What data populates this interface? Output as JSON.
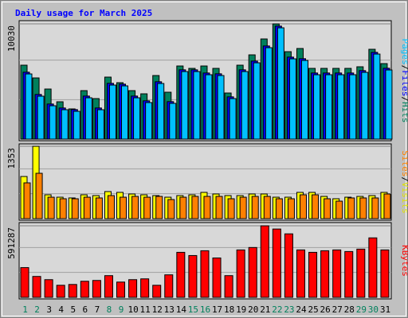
{
  "chart_data": {
    "type": "bar",
    "title": "Daily usage for March 2025",
    "separator": "/",
    "categories": [
      "1",
      "2",
      "3",
      "4",
      "5",
      "6",
      "7",
      "8",
      "9",
      "10",
      "11",
      "12",
      "13",
      "14",
      "15",
      "16",
      "17",
      "18",
      "19",
      "20",
      "21",
      "22",
      "23",
      "24",
      "25",
      "26",
      "27",
      "28",
      "29",
      "30",
      "31"
    ],
    "category_colors": [
      "#00805c",
      "#00805c",
      "#000000",
      "#000000",
      "#000000",
      "#000000",
      "#000000",
      "#00805c",
      "#00805c",
      "#000000",
      "#000000",
      "#000000",
      "#000000",
      "#000000",
      "#00805c",
      "#00805c",
      "#000000",
      "#000000",
      "#000000",
      "#000000",
      "#000000",
      "#00805c",
      "#00805c",
      "#000000",
      "#000000",
      "#000000",
      "#000000",
      "#000000",
      "#00805c",
      "#00805c",
      "#000000"
    ],
    "panels": [
      {
        "ylim": [
          0,
          10311
        ],
        "yticks": [
          10030
        ],
        "series": [
          {
            "name": "Hits",
            "color": "#00805c",
            "values": [
              6436,
              5328,
              4360,
              3252,
              2630,
              4221,
              3529,
              5398,
              4913,
              4221,
              3944,
              5536,
              4083,
              6366,
              6159,
              6366,
              6159,
              4014,
              6436,
              7335,
              8719,
              10030,
              7612,
              7889,
              6159,
              6159,
              6159,
              6159,
              6297,
              7820,
              6574
            ]
          },
          {
            "name": "Files",
            "color": "#0000ff",
            "values": [
              5824,
              3887,
              3056,
              2710,
              2572,
              3748,
              2710,
              4856,
              4786,
              3748,
              3333,
              4994,
              3264,
              6032,
              6032,
              5755,
              5686,
              3679,
              6032,
              6793,
              8108,
              9838,
              7139,
              7001,
              5755,
              5755,
              5755,
              5755,
              5963,
              7554,
              6170
            ]
          },
          {
            "name": "Pages",
            "color": "#00c0ff",
            "values": [
              5674,
              3737,
              2906,
              2560,
              2422,
              3598,
              2560,
              4706,
              4636,
              3598,
              3183,
              4844,
              3114,
              5882,
              5882,
              5605,
              5536,
              3529,
              5882,
              6643,
              7958,
              9688,
              6989,
              6851,
              5605,
              5605,
              5605,
              5605,
              5813,
              7404,
              6020
            ]
          }
        ]
      },
      {
        "ylim": [
          0,
          1398
        ],
        "yticks": [
          1353
        ],
        "series": [
          {
            "name": "Visits",
            "color": "#ffff00",
            "values": [
              788,
              1353,
              446,
              401,
              387,
              446,
              431,
              506,
              491,
              461,
              446,
              431,
              401,
              431,
              446,
              491,
              461,
              431,
              431,
              461,
              461,
              401,
              401,
              491,
              491,
              416,
              372,
              401,
              416,
              431,
              491
            ]
          },
          {
            "name": "Sites",
            "color": "#ff8000",
            "values": [
              669,
              848,
              401,
              372,
              372,
              401,
              387,
              431,
              401,
              416,
              401,
              416,
              357,
              401,
              416,
              416,
              416,
              372,
              401,
              416,
              416,
              372,
              372,
              446,
              446,
              372,
              327,
              387,
              387,
              387,
              461
            ]
          }
        ]
      },
      {
        "ylim": [
          0,
          617892
        ],
        "yticks": [
          591287
        ],
        "series": [
          {
            "name": "KBytes",
            "color": "#ff0000",
            "values": [
              245828,
              172744,
              146168,
              99660,
              106304,
              132880,
              139524,
              179388,
              126236,
              146168,
              152812,
              99660,
              186032,
              372064,
              345488,
              385352,
              325556,
              179388,
              391996,
              411928,
              591287,
              564740,
              524876,
              391996,
              372064,
              385352,
              391996,
              378708,
              398640,
              491656,
              391996
            ]
          }
        ]
      }
    ]
  }
}
